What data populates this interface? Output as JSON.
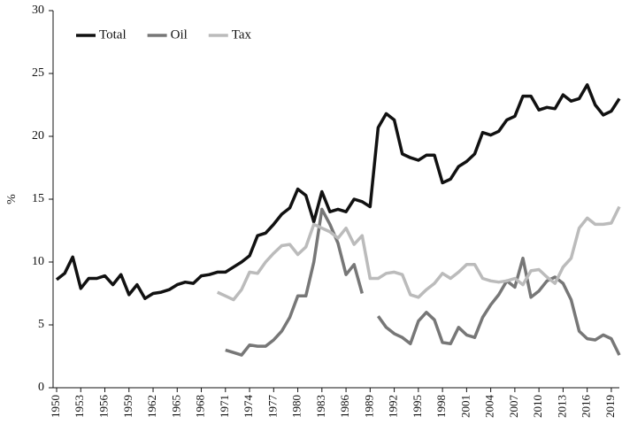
{
  "chart_data": {
    "type": "line",
    "y_label": "%",
    "x": [
      1950,
      1951,
      1952,
      1953,
      1954,
      1955,
      1956,
      1957,
      1958,
      1959,
      1960,
      1961,
      1962,
      1963,
      1964,
      1965,
      1966,
      1967,
      1968,
      1969,
      1970,
      1971,
      1972,
      1973,
      1974,
      1975,
      1976,
      1977,
      1978,
      1979,
      1980,
      1981,
      1982,
      1983,
      1984,
      1985,
      1986,
      1987,
      1988,
      1989,
      1990,
      1991,
      1992,
      1993,
      1994,
      1995,
      1996,
      1997,
      1998,
      1999,
      2000,
      2001,
      2002,
      2003,
      2004,
      2005,
      2006,
      2007,
      2008,
      2009,
      2010,
      2011,
      2012,
      2013,
      2014,
      2015,
      2016,
      2017,
      2018,
      2019,
      2020
    ],
    "series": [
      {
        "name": "Total",
        "color": "#111111",
        "values": [
          8.6,
          9.1,
          10.4,
          7.9,
          8.7,
          8.7,
          8.9,
          8.2,
          9.0,
          7.4,
          8.2,
          7.1,
          7.5,
          7.6,
          7.8,
          8.2,
          8.4,
          8.3,
          8.9,
          9.0,
          9.2,
          9.2,
          9.6,
          10.0,
          10.5,
          12.1,
          12.3,
          13.0,
          13.8,
          14.3,
          15.8,
          15.3,
          13.2,
          15.6,
          14.0,
          14.2,
          14.0,
          15.0,
          14.8,
          14.4,
          20.7,
          21.8,
          21.3,
          18.6,
          18.3,
          18.1,
          18.5,
          18.5,
          16.3,
          16.6,
          17.6,
          18.0,
          18.6,
          20.3,
          20.1,
          20.4,
          21.3,
          21.6,
          23.2,
          23.2,
          22.1,
          22.3,
          22.2,
          23.3,
          22.8,
          23.0,
          24.1,
          22.5,
          21.7,
          22.0,
          23.0
        ]
      },
      {
        "name": "Oil",
        "color": "#777777",
        "values": [
          null,
          null,
          null,
          null,
          null,
          null,
          null,
          null,
          null,
          null,
          null,
          null,
          null,
          null,
          null,
          null,
          null,
          null,
          null,
          null,
          null,
          3.0,
          2.8,
          2.6,
          3.4,
          3.3,
          3.3,
          3.8,
          4.5,
          5.6,
          7.3,
          7.3,
          10.0,
          14.2,
          13.0,
          11.5,
          9.0,
          9.8,
          7.5,
          null,
          5.7,
          4.8,
          4.3,
          4.0,
          3.5,
          5.3,
          6.0,
          5.4,
          3.6,
          3.5,
          4.8,
          4.2,
          4.0,
          5.6,
          6.6,
          7.4,
          8.5,
          8.0,
          10.3,
          7.2,
          7.7,
          8.5,
          8.8,
          8.3,
          7.0,
          4.5,
          3.9,
          3.8,
          4.2,
          3.9,
          2.6
        ]
      },
      {
        "name": "Tax",
        "color": "#bbbbbb",
        "values": [
          null,
          null,
          null,
          null,
          null,
          null,
          null,
          null,
          null,
          null,
          null,
          null,
          null,
          null,
          null,
          null,
          null,
          null,
          null,
          null,
          7.6,
          7.3,
          7.0,
          7.8,
          9.2,
          9.1,
          10.0,
          10.7,
          11.3,
          11.4,
          10.6,
          11.2,
          13.0,
          12.7,
          12.4,
          11.9,
          12.7,
          11.4,
          12.1,
          8.7,
          8.7,
          9.1,
          9.2,
          9.0,
          7.4,
          7.2,
          7.8,
          8.3,
          9.1,
          8.7,
          9.2,
          9.8,
          9.8,
          8.7,
          8.5,
          8.4,
          8.5,
          8.7,
          8.2,
          9.3,
          9.4,
          8.8,
          8.3,
          9.6,
          10.3,
          12.7,
          13.5,
          13.0,
          13.0,
          13.1,
          14.4
        ]
      }
    ],
    "xlim": [
      1950,
      2020
    ],
    "xticks": [
      1950,
      1953,
      1956,
      1959,
      1962,
      1965,
      1968,
      1971,
      1974,
      1977,
      1980,
      1983,
      1986,
      1989,
      1992,
      1995,
      1998,
      2001,
      2004,
      2007,
      2010,
      2013,
      2016,
      2019
    ],
    "ylim": [
      0,
      30
    ],
    "yticks": [
      0,
      5,
      10,
      15,
      20,
      25,
      30
    ],
    "legend": "top-left"
  }
}
